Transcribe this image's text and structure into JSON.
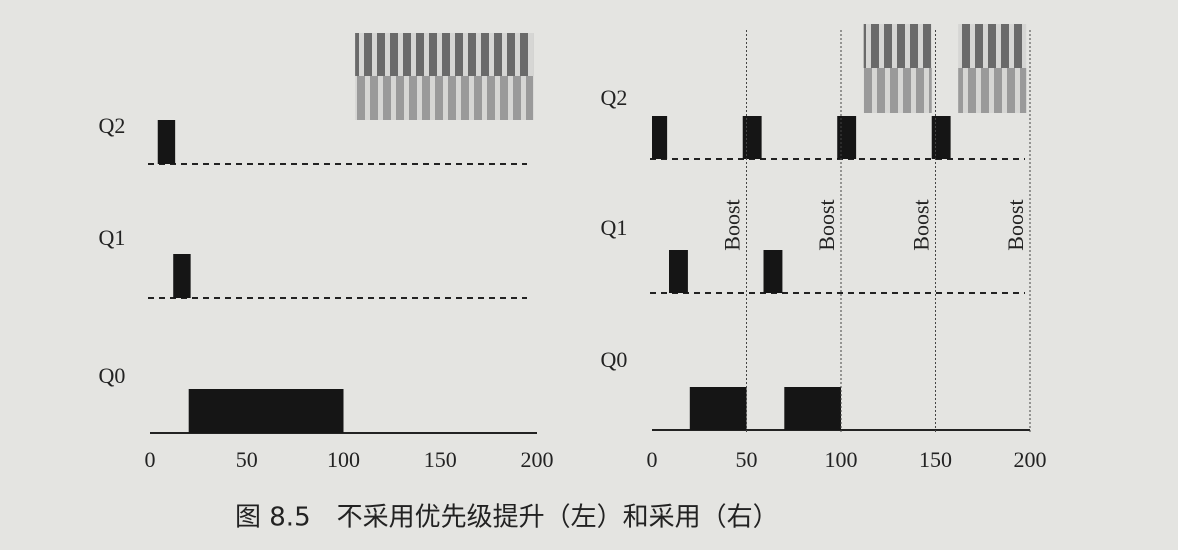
{
  "panels": [
    {
      "xlim": [
        0,
        200
      ],
      "xticks": [
        0,
        50,
        100,
        150,
        200
      ],
      "queues": [
        {
          "label": "Q2",
          "runs": [
            [
              4,
              13
            ]
          ]
        },
        {
          "label": "Q1",
          "runs": [
            [
              12,
              21
            ]
          ]
        },
        {
          "label": "Q0",
          "runs": [
            [
              20,
              100
            ]
          ]
        }
      ],
      "interactive": [
        [
          106,
          198
        ]
      ]
    },
    {
      "xlim": [
        0,
        200
      ],
      "xticks": [
        0,
        50,
        100,
        150,
        200
      ],
      "queues": [
        {
          "label": "Q2",
          "runs": [
            [
              0,
              8
            ],
            [
              48,
              58
            ],
            [
              98,
              108
            ],
            [
              148,
              158
            ]
          ]
        },
        {
          "label": "Q1",
          "runs": [
            [
              9,
              19
            ],
            [
              59,
              69
            ]
          ]
        },
        {
          "label": "Q0",
          "runs": [
            [
              20,
              50
            ],
            [
              70,
              100
            ]
          ]
        }
      ],
      "interactive": [
        [
          112,
          148
        ],
        [
          162,
          198
        ]
      ],
      "boost": {
        "label": "Boost",
        "times": [
          50,
          100,
          150,
          200
        ]
      }
    }
  ],
  "caption": "图 8.5　不采用优先级提升（左）和采用（右）"
}
